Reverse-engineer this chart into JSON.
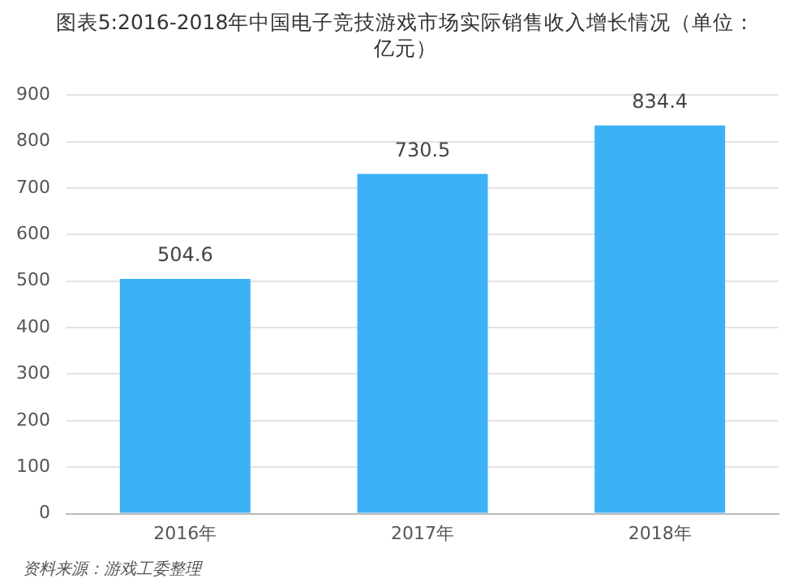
{
  "chart_data": {
    "type": "bar",
    "title": "图表5:2016-2018年中国电子竞技游戏市场实际销售收入增长情况（单位：亿元）",
    "categories": [
      "2016年",
      "2017年",
      "2018年"
    ],
    "values": [
      504.6,
      730.5,
      834.4
    ],
    "color": "#3db1f5",
    "ylim": [
      0,
      900
    ],
    "yticks": [
      0,
      100,
      200,
      300,
      400,
      500,
      600,
      700,
      800,
      900
    ],
    "grid": "y",
    "data_labels": true,
    "legend": false,
    "annotations": [
      "资料来源：游戏工委整理"
    ]
  }
}
